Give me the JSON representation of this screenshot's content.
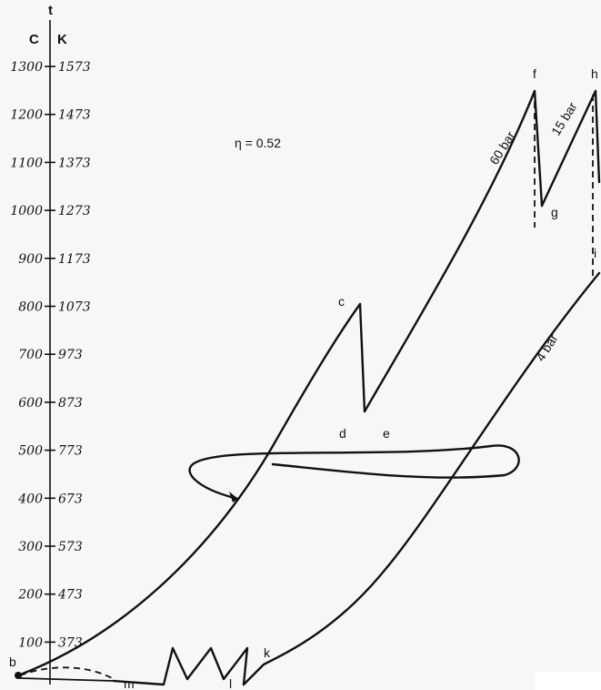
{
  "axis": {
    "title": "t",
    "celsius_unit": "C",
    "kelvin_unit": "K",
    "ticks": [
      {
        "c": "1300",
        "k": "1573"
      },
      {
        "c": "1200",
        "k": "1473"
      },
      {
        "c": "1100",
        "k": "1373"
      },
      {
        "c": "1000",
        "k": "1273"
      },
      {
        "c": "900",
        "k": "1173"
      },
      {
        "c": "800",
        "k": "1073"
      },
      {
        "c": "700",
        "k": "973"
      },
      {
        "c": "600",
        "k": "873"
      },
      {
        "c": "500",
        "k": "773"
      },
      {
        "c": "400",
        "k": "673"
      },
      {
        "c": "300",
        "k": "573"
      },
      {
        "c": "200",
        "k": "473"
      },
      {
        "c": "100",
        "k": "373"
      }
    ]
  },
  "efficiency": "η = 0.52",
  "pressure_labels": {
    "high": "60 bar",
    "reheat": "15 bar",
    "low": "4 bar"
  },
  "points": {
    "b": "b",
    "c": "c",
    "d": "d",
    "e": "e",
    "f": "f",
    "g": "g",
    "h": "h",
    "i": "i",
    "k": "k",
    "l": "l",
    "m": "m"
  }
}
